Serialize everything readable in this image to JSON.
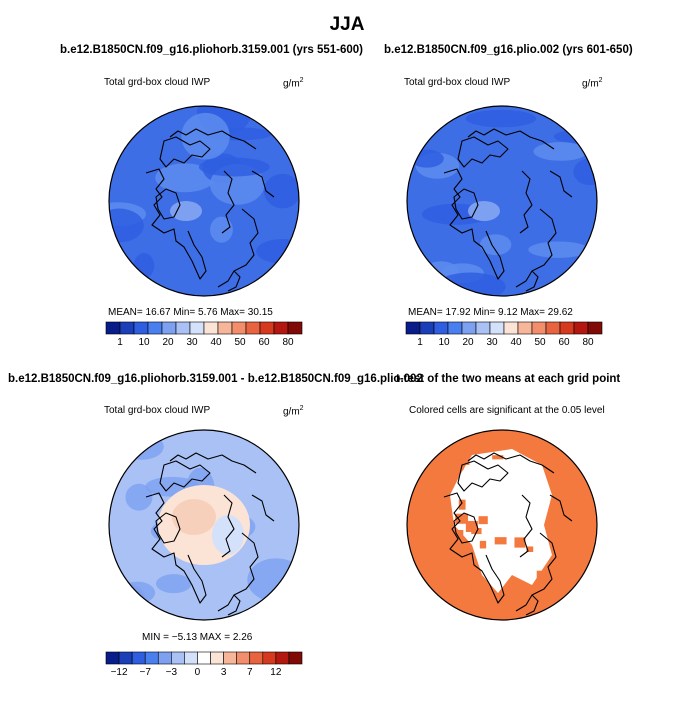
{
  "main_title": "JJA",
  "panels": [
    {
      "title": "b.e12.B1850CN.f09_g16.pliohorb.3159.001 (yrs 551-600)",
      "variable": "Total grd-box cloud IWP",
      "units_base": "g/m",
      "units_exp": "2",
      "stats": "MEAN=   16.67   Min=     5.76   Max=   30.15"
    },
    {
      "title": "b.e12.B1850CN.f09_g16.plio.002 (yrs 601-650)",
      "variable": "Total grd-box cloud IWP",
      "units_base": "g/m",
      "units_exp": "2",
      "stats": "MEAN=   17.92   Min=     9.12   Max=   29.62"
    },
    {
      "title": "b.e12.B1850CN.f09_g16.pliohorb.3159.001 - b.e12.B1850CN.f09_g16.plio.002",
      "variable": "Total grd-box cloud IWP",
      "units_base": "g/m",
      "units_exp": "2",
      "stats": "MIN =   −5.13  MAX =     2.26"
    },
    {
      "title": "t-test of the two means at each grid point",
      "variable": "Colored cells are significant at the 0.05 level"
    }
  ],
  "chart_data": [
    {
      "type": "heatmap",
      "title": "b.e12.B1850CN.f09_g16.pliohorb.3159.001 (yrs 551-600)",
      "projection": "north polar stereographic",
      "variable": "Total grd-box cloud IWP",
      "units": "g/m2",
      "mean": 16.67,
      "min": 5.76,
      "max": 30.15,
      "colorbar_ticks": [
        "1",
        "10",
        "20",
        "30",
        "40",
        "50",
        "60",
        "80"
      ],
      "colorbar_colors": [
        "#081d8a",
        "#1a3fb8",
        "#2f5fe0",
        "#4a7fef",
        "#7da0f0",
        "#a9c1f5",
        "#d3e1fa",
        "#fbe3d6",
        "#f7b69a",
        "#f28e6b",
        "#e8633f",
        "#d63a1e",
        "#b3170f",
        "#800a05"
      ]
    },
    {
      "type": "heatmap",
      "title": "b.e12.B1850CN.f09_g16.plio.002 (yrs 601-650)",
      "projection": "north polar stereographic",
      "variable": "Total grd-box cloud IWP",
      "units": "g/m2",
      "mean": 17.92,
      "min": 9.12,
      "max": 29.62,
      "colorbar_ticks": [
        "1",
        "10",
        "20",
        "30",
        "40",
        "50",
        "60",
        "80"
      ],
      "colorbar_colors": [
        "#081d8a",
        "#1a3fb8",
        "#2f5fe0",
        "#4a7fef",
        "#7da0f0",
        "#a9c1f5",
        "#d3e1fa",
        "#fbe3d6",
        "#f7b69a",
        "#f28e6b",
        "#e8633f",
        "#d63a1e",
        "#b3170f",
        "#800a05"
      ]
    },
    {
      "type": "heatmap",
      "title": "b.e12.B1850CN.f09_g16.pliohorb.3159.001 - b.e12.B1850CN.f09_g16.plio.002",
      "projection": "north polar stereographic",
      "variable": "Total grd-box cloud IWP",
      "units": "g/m2",
      "min": -5.13,
      "max": 2.26,
      "colorbar_ticks": [
        "−12",
        "−7",
        "−3",
        "0",
        "3",
        "7",
        "12"
      ],
      "colorbar_colors": [
        "#081d8a",
        "#1a3fb8",
        "#2f5fe0",
        "#4a7fef",
        "#7da0f0",
        "#a9c1f5",
        "#d3e1fa",
        "#ffffff",
        "#fbe3d6",
        "#f7b69a",
        "#f28e6b",
        "#e8633f",
        "#d63a1e",
        "#b3170f",
        "#800a05"
      ]
    },
    {
      "type": "heatmap",
      "title": "t-test of the two means at each grid point",
      "projection": "north polar stereographic",
      "variable": "Colored cells are significant at the 0.05 level",
      "significant_color": "#f4793e",
      "not_significant_color": "#ffffff"
    }
  ]
}
